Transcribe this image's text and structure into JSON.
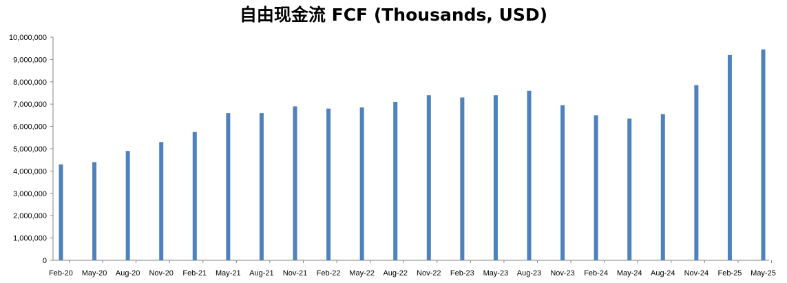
{
  "chart_data": {
    "type": "bar",
    "title": "自由现金流 FCF (Thousands, USD)",
    "xlabel": "",
    "ylabel": "",
    "ylim": [
      0,
      10000000
    ],
    "grid": false,
    "legend": "none",
    "bar_color": "#4F81BD",
    "y_ticks": [
      "0",
      "1,000,000",
      "2,000,000",
      "3,000,000",
      "4,000,000",
      "5,000,000",
      "6,000,000",
      "7,000,000",
      "8,000,000",
      "9,000,000",
      "10,000,000"
    ],
    "x_tick_labels": [
      "Feb-20",
      "May-20",
      "Aug-20",
      "Nov-20",
      "Feb-21",
      "May-21",
      "Aug-21",
      "Nov-21",
      "Feb-22",
      "May-22",
      "Aug-22",
      "Nov-22",
      "Feb-23",
      "May-23",
      "Aug-23",
      "Nov-23",
      "Feb-24",
      "May-24",
      "Aug-24",
      "Nov-24",
      "Feb-25",
      "May-25"
    ],
    "categories": [
      "Feb-20",
      "May-20",
      "Aug-20",
      "Nov-20",
      "Feb-21",
      "May-21",
      "Aug-21",
      "Nov-21",
      "Feb-22",
      "May-22",
      "Aug-22",
      "Nov-22",
      "Feb-23",
      "May-23",
      "Aug-23",
      "Nov-23",
      "Feb-24",
      "May-24",
      "Aug-24",
      "Nov-24",
      "Feb-25",
      "May-25"
    ],
    "values": [
      4300000,
      4400000,
      4900000,
      5300000,
      5750000,
      6600000,
      6600000,
      6900000,
      6800000,
      6850000,
      7100000,
      7400000,
      7300000,
      7400000,
      7600000,
      6950000,
      6500000,
      6350000,
      6550000,
      7850000,
      9200000,
      9450000
    ]
  }
}
